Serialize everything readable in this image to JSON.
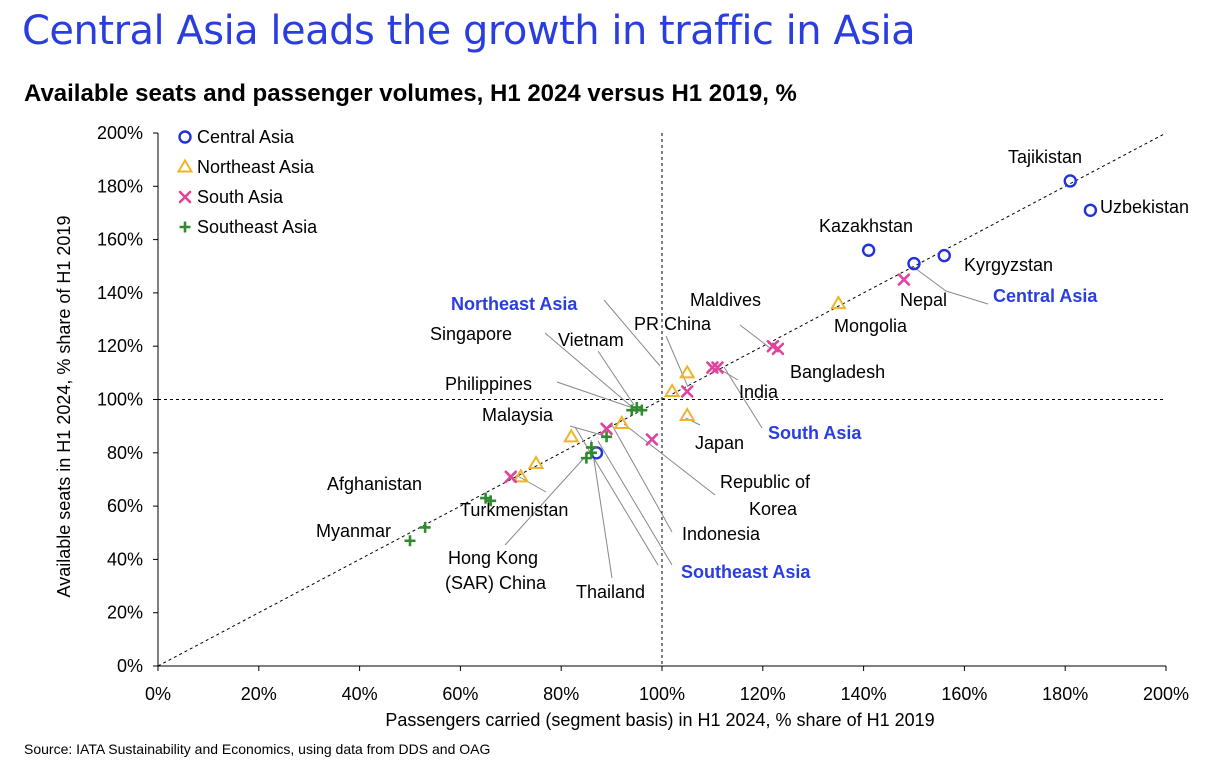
{
  "title": "Central Asia leads the growth in traffic in Asia",
  "subtitle": "Available seats and passenger volumes, H1 2024 versus H1 2019, %",
  "source": "Source: IATA Sustainability and Economics, using data from DDS and OAG",
  "colors": {
    "central_asia": "#2233dd",
    "northeast_asia": "#f0b429",
    "south_asia": "#e0449c",
    "southeast_asia": "#2e8b2e",
    "region_label": "#2a3ee0"
  },
  "chart_data": {
    "type": "scatter",
    "xlabel": "Passengers carried (segment basis) in H1 2024, % share of H1 2019",
    "ylabel": "Available seats in H1 2024, % share of H1 2019",
    "xlim": [
      0,
      200
    ],
    "ylim": [
      0,
      200
    ],
    "x_ticks": [
      "0%",
      "20%",
      "40%",
      "60%",
      "80%",
      "100%",
      "120%",
      "140%",
      "160%",
      "180%",
      "200%"
    ],
    "y_ticks": [
      "0%",
      "20%",
      "40%",
      "60%",
      "80%",
      "100%",
      "120%",
      "140%",
      "160%",
      "180%",
      "200%"
    ],
    "grid": false,
    "reference_lines": {
      "diagonal": "y = x",
      "vertical_x": 100,
      "horizontal_y": 100
    },
    "legend_position": "top-left",
    "series": [
      {
        "name": "Central Asia",
        "marker": "circle",
        "color_key": "central_asia",
        "points": [
          {
            "label": "Tajikistan",
            "x": 181,
            "y": 182
          },
          {
            "label": "Uzbekistan",
            "x": 185,
            "y": 171
          },
          {
            "label": "Kazakhstan",
            "x": 141,
            "y": 156
          },
          {
            "label": "Kyrgyzstan",
            "x": 156,
            "y": 154
          },
          {
            "label": "",
            "x": 150,
            "y": 151
          },
          {
            "label": "",
            "x": 87,
            "y": 80
          }
        ]
      },
      {
        "name": "Northeast Asia",
        "marker": "triangle",
        "color_key": "northeast_asia",
        "points": [
          {
            "label": "Mongolia",
            "x": 135,
            "y": 136
          },
          {
            "label": "PR China",
            "x": 105,
            "y": 110
          },
          {
            "label": "",
            "x": 102,
            "y": 103
          },
          {
            "label": "Japan",
            "x": 105,
            "y": 94
          },
          {
            "label": "",
            "x": 92,
            "y": 91
          },
          {
            "label": "",
            "x": 82,
            "y": 86
          },
          {
            "label": "",
            "x": 75,
            "y": 76
          },
          {
            "label": "",
            "x": 72,
            "y": 71
          }
        ]
      },
      {
        "name": "South Asia",
        "marker": "x",
        "color_key": "south_asia",
        "points": [
          {
            "label": "Nepal",
            "x": 148,
            "y": 145
          },
          {
            "label": "Maldives",
            "x": 122,
            "y": 120
          },
          {
            "label": "Bangladesh",
            "x": 123,
            "y": 119
          },
          {
            "label": "India",
            "x": 111,
            "y": 112
          },
          {
            "label": "",
            "x": 110,
            "y": 112
          },
          {
            "label": "",
            "x": 105,
            "y": 103
          },
          {
            "label": "",
            "x": 98,
            "y": 85
          },
          {
            "label": "",
            "x": 89,
            "y": 89
          },
          {
            "label": "Afghanistan",
            "x": 70,
            "y": 71
          }
        ]
      },
      {
        "name": "Southeast Asia",
        "marker": "plus",
        "color_key": "southeast_asia",
        "points": [
          {
            "label": "Vietnam",
            "x": 95,
            "y": 97
          },
          {
            "label": "Singapore",
            "x": 96,
            "y": 96
          },
          {
            "label": "Philippines",
            "x": 94,
            "y": 96
          },
          {
            "label": "Malaysia",
            "x": 89,
            "y": 86
          },
          {
            "label": "Indonesia",
            "x": 86,
            "y": 82
          },
          {
            "label": "Thailand",
            "x": 86,
            "y": 80
          },
          {
            "label": "Hong Kong (SAR) China",
            "x": 85,
            "y": 78
          },
          {
            "label": "",
            "x": 65,
            "y": 63
          },
          {
            "label": "",
            "x": 66,
            "y": 62
          },
          {
            "label": "",
            "x": 53,
            "y": 52
          },
          {
            "label": "Myanmar",
            "x": 50,
            "y": 47
          }
        ]
      }
    ],
    "annotations": [
      {
        "text": "Tajikistan",
        "region": false
      },
      {
        "text": "Uzbekistan",
        "region": false
      },
      {
        "text": "Kazakhstan",
        "region": false
      },
      {
        "text": "Kyrgyzstan",
        "region": false
      },
      {
        "text": "Nepal",
        "region": false
      },
      {
        "text": "Central Asia",
        "region": true
      },
      {
        "text": "Maldives",
        "region": false
      },
      {
        "text": "Mongolia",
        "region": false
      },
      {
        "text": "Bangladesh",
        "region": false
      },
      {
        "text": "Northeast Asia",
        "region": true
      },
      {
        "text": "PR China",
        "region": false
      },
      {
        "text": "Singapore",
        "region": false
      },
      {
        "text": "Vietnam",
        "region": false
      },
      {
        "text": "India",
        "region": false
      },
      {
        "text": "Philippines",
        "region": false
      },
      {
        "text": "Malaysia",
        "region": false
      },
      {
        "text": "Japan",
        "region": false
      },
      {
        "text": "South Asia",
        "region": true
      },
      {
        "text": "Republic of",
        "region": false
      },
      {
        "text": "Korea",
        "region": false
      },
      {
        "text": "Afghanistan",
        "region": false
      },
      {
        "text": "Turkmenistan",
        "region": false
      },
      {
        "text": "Indonesia",
        "region": false
      },
      {
        "text": "Myanmar",
        "region": false
      },
      {
        "text": "Hong Kong",
        "region": false
      },
      {
        "text": "(SAR) China",
        "region": false
      },
      {
        "text": "Southeast Asia",
        "region": true
      },
      {
        "text": "Thailand",
        "region": false
      }
    ]
  }
}
